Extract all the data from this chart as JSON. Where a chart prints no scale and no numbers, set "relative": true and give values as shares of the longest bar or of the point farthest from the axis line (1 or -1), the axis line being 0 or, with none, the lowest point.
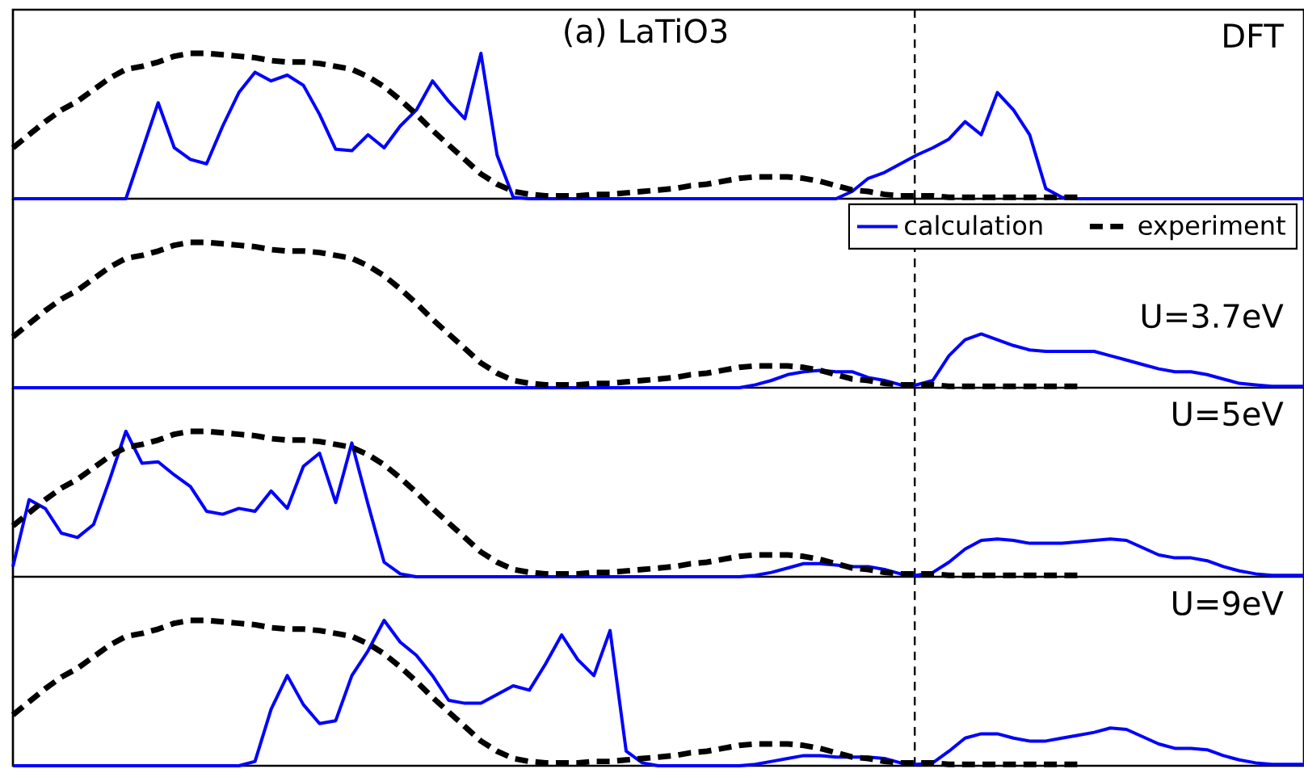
{
  "chart_data": [
    {
      "type": "line",
      "relative": true,
      "title": "(a) LaTiO3",
      "annotations": [
        "DFT"
      ],
      "legend": false,
      "categories": [
        null,
        null,
        null,
        null,
        null,
        null,
        null,
        null,
        null,
        null,
        null,
        null,
        null,
        null,
        null,
        null,
        null,
        null,
        null,
        null,
        null,
        null,
        null,
        null,
        null,
        null,
        null,
        null,
        null,
        null,
        null,
        null,
        null,
        null,
        null,
        null,
        null,
        null,
        null,
        null,
        null,
        null,
        null,
        null,
        null,
        null,
        null,
        null,
        null,
        null,
        null,
        null,
        null,
        null,
        null,
        null,
        null,
        null,
        null,
        null,
        null,
        null,
        null,
        null,
        null,
        null,
        null,
        null,
        null,
        null,
        null,
        null,
        null,
        null,
        null,
        null,
        null,
        null,
        null,
        null,
        null
      ],
      "series": [
        {
          "color": "#0000ff",
          "line_style": "solid",
          "values": [
            0,
            0,
            0,
            0,
            0,
            0,
            0,
            0,
            0.33,
            0.66,
            0.35,
            0.27,
            0.24,
            0.5,
            0.73,
            0.87,
            0.81,
            0.85,
            0.78,
            0.58,
            0.34,
            0.33,
            0.44,
            0.35,
            0.5,
            0.61,
            0.81,
            0.67,
            0.55,
            1.0,
            0.3,
            0.01,
            0,
            0,
            0,
            0,
            0,
            0,
            0,
            0,
            0,
            0,
            0,
            0,
            0,
            0,
            0,
            0,
            0,
            0,
            0,
            0,
            0.05,
            0.14,
            0.18,
            0.24,
            0.3,
            0.35,
            0.41,
            0.53,
            0.44,
            0.73,
            0.61,
            0.44,
            0.07,
            0.01,
            0,
            0,
            0,
            0,
            0,
            0,
            0,
            0,
            0,
            0,
            0,
            0,
            0,
            0,
            0
          ]
        },
        {
          "color": "#000000",
          "line_style": "dashed",
          "values": [
            0.35,
            0.44,
            0.53,
            0.61,
            0.67,
            0.75,
            0.83,
            0.89,
            0.91,
            0.94,
            0.98,
            1.0,
            1.0,
            0.99,
            0.98,
            0.97,
            0.95,
            0.94,
            0.94,
            0.93,
            0.91,
            0.89,
            0.84,
            0.77,
            0.68,
            0.58,
            0.47,
            0.37,
            0.27,
            0.17,
            0.1,
            0.05,
            0.03,
            0.02,
            0.02,
            0.02,
            0.03,
            0.03,
            0.04,
            0.05,
            0.06,
            0.07,
            0.09,
            0.1,
            0.12,
            0.14,
            0.15,
            0.15,
            0.15,
            0.14,
            0.12,
            0.09,
            0.06,
            0.05,
            0.03,
            0.02,
            0.02,
            0.02,
            0.01,
            0.01,
            0.01,
            0.01,
            0.01,
            0.01,
            0.01,
            0.01,
            0.01,
            null,
            null,
            null,
            null,
            null,
            null,
            null,
            null,
            null,
            null,
            null,
            null,
            null,
            null
          ]
        }
      ]
    },
    {
      "type": "line",
      "relative": true,
      "annotations": [
        "U=3.7eV"
      ],
      "legend": "top right",
      "categories": [
        null,
        null,
        null,
        null,
        null,
        null,
        null,
        null,
        null,
        null,
        null,
        null,
        null,
        null,
        null,
        null,
        null,
        null,
        null,
        null,
        null,
        null,
        null,
        null,
        null,
        null,
        null,
        null,
        null,
        null,
        null,
        null,
        null,
        null,
        null,
        null,
        null,
        null,
        null,
        null,
        null,
        null,
        null,
        null,
        null,
        null,
        null,
        null,
        null,
        null,
        null,
        null,
        null,
        null,
        null,
        null,
        null,
        null,
        null,
        null,
        null,
        null,
        null,
        null,
        null,
        null,
        null,
        null,
        null,
        null,
        null,
        null,
        null,
        null,
        null,
        null,
        null,
        null,
        null,
        null,
        null
      ],
      "series": [
        {
          "name": "calculation",
          "color": "#0000ff",
          "line_style": "solid",
          "values": [
            0,
            0,
            0,
            0,
            0,
            0,
            0,
            0,
            0,
            0,
            0,
            0,
            0,
            0,
            0,
            0,
            0,
            0,
            0,
            0,
            0,
            0,
            0,
            0,
            0,
            0,
            0,
            0,
            0,
            0,
            0,
            0,
            0,
            0,
            0,
            0,
            0,
            0,
            0,
            0,
            0,
            0,
            0,
            0,
            0,
            0,
            0.02,
            0.05,
            0.09,
            0.11,
            0.12,
            0.11,
            0.11,
            0.07,
            0.05,
            0.02,
            0.02,
            0.05,
            0.22,
            0.33,
            0.37,
            0.33,
            0.29,
            0.26,
            0.25,
            0.25,
            0.25,
            0.25,
            0.22,
            0.19,
            0.16,
            0.13,
            0.11,
            0.11,
            0.09,
            0.06,
            0.03,
            0.02,
            0.01,
            0.01,
            0.01
          ]
        },
        {
          "name": "experiment",
          "color": "#000000",
          "line_style": "dashed",
          "values": [
            0.35,
            0.44,
            0.53,
            0.61,
            0.67,
            0.75,
            0.83,
            0.89,
            0.91,
            0.94,
            0.98,
            1.0,
            1.0,
            0.99,
            0.98,
            0.97,
            0.95,
            0.94,
            0.94,
            0.93,
            0.91,
            0.89,
            0.84,
            0.77,
            0.68,
            0.58,
            0.47,
            0.37,
            0.27,
            0.17,
            0.1,
            0.05,
            0.03,
            0.02,
            0.02,
            0.02,
            0.03,
            0.03,
            0.04,
            0.05,
            0.06,
            0.07,
            0.09,
            0.1,
            0.12,
            0.14,
            0.15,
            0.15,
            0.15,
            0.14,
            0.12,
            0.09,
            0.06,
            0.05,
            0.03,
            0.02,
            0.02,
            0.02,
            0.01,
            0.01,
            0.01,
            0.01,
            0.01,
            0.01,
            0.01,
            0.01,
            0.01,
            null,
            null,
            null,
            null,
            null,
            null,
            null,
            null,
            null,
            null,
            null,
            null,
            null,
            null
          ]
        }
      ]
    },
    {
      "type": "line",
      "relative": true,
      "annotations": [
        "U=5eV"
      ],
      "legend": false,
      "categories": [
        null,
        null,
        null,
        null,
        null,
        null,
        null,
        null,
        null,
        null,
        null,
        null,
        null,
        null,
        null,
        null,
        null,
        null,
        null,
        null,
        null,
        null,
        null,
        null,
        null,
        null,
        null,
        null,
        null,
        null,
        null,
        null,
        null,
        null,
        null,
        null,
        null,
        null,
        null,
        null,
        null,
        null,
        null,
        null,
        null,
        null,
        null,
        null,
        null,
        null,
        null,
        null,
        null,
        null,
        null,
        null,
        null,
        null,
        null,
        null,
        null,
        null,
        null,
        null,
        null,
        null,
        null,
        null,
        null,
        null,
        null,
        null,
        null,
        null,
        null,
        null,
        null,
        null,
        null,
        null,
        null
      ],
      "series": [
        {
          "color": "#0000ff",
          "line_style": "solid",
          "values": [
            0.07,
            0.53,
            0.47,
            0.3,
            0.27,
            0.36,
            0.67,
            1.0,
            0.78,
            0.79,
            0.7,
            0.62,
            0.45,
            0.43,
            0.47,
            0.45,
            0.59,
            0.47,
            0.76,
            0.85,
            0.51,
            0.92,
            0.5,
            0.1,
            0.02,
            0,
            0,
            0,
            0,
            0,
            0,
            0,
            0,
            0,
            0,
            0,
            0,
            0,
            0,
            0,
            0,
            0,
            0,
            0,
            0,
            0,
            0.01,
            0.03,
            0.06,
            0.09,
            0.09,
            0.08,
            0.07,
            0.07,
            0.05,
            0.02,
            0.01,
            0.03,
            0.1,
            0.19,
            0.25,
            0.26,
            0.25,
            0.23,
            0.23,
            0.23,
            0.24,
            0.25,
            0.26,
            0.25,
            0.2,
            0.15,
            0.13,
            0.13,
            0.11,
            0.07,
            0.04,
            0.02,
            0.01,
            0.01,
            0.01
          ]
        },
        {
          "color": "#000000",
          "line_style": "dashed",
          "values": [
            0.35,
            0.44,
            0.53,
            0.61,
            0.67,
            0.75,
            0.83,
            0.89,
            0.91,
            0.94,
            0.98,
            1.0,
            1.0,
            0.99,
            0.98,
            0.97,
            0.95,
            0.94,
            0.94,
            0.93,
            0.91,
            0.89,
            0.84,
            0.77,
            0.68,
            0.58,
            0.47,
            0.37,
            0.27,
            0.17,
            0.1,
            0.05,
            0.03,
            0.02,
            0.02,
            0.02,
            0.03,
            0.03,
            0.04,
            0.05,
            0.06,
            0.07,
            0.09,
            0.1,
            0.12,
            0.14,
            0.15,
            0.15,
            0.15,
            0.14,
            0.12,
            0.09,
            0.06,
            0.05,
            0.03,
            0.02,
            0.02,
            0.02,
            0.01,
            0.01,
            0.01,
            0.01,
            0.01,
            0.01,
            0.01,
            0.01,
            0.01,
            null,
            null,
            null,
            null,
            null,
            null,
            null,
            null,
            null,
            null,
            null,
            null,
            null,
            null
          ]
        }
      ]
    },
    {
      "type": "line",
      "relative": true,
      "annotations": [
        "U=9eV"
      ],
      "legend": false,
      "categories": [
        null,
        null,
        null,
        null,
        null,
        null,
        null,
        null,
        null,
        null,
        null,
        null,
        null,
        null,
        null,
        null,
        null,
        null,
        null,
        null,
        null,
        null,
        null,
        null,
        null,
        null,
        null,
        null,
        null,
        null,
        null,
        null,
        null,
        null,
        null,
        null,
        null,
        null,
        null,
        null,
        null,
        null,
        null,
        null,
        null,
        null,
        null,
        null,
        null,
        null,
        null,
        null,
        null,
        null,
        null,
        null,
        null,
        null,
        null,
        null,
        null,
        null,
        null,
        null,
        null,
        null,
        null,
        null,
        null,
        null,
        null,
        null,
        null,
        null,
        null,
        null,
        null,
        null,
        null,
        null,
        null
      ],
      "series": [
        {
          "color": "#0000ff",
          "line_style": "solid",
          "values": [
            0,
            0,
            0,
            0,
            0,
            0,
            0,
            0,
            0,
            0,
            0,
            0,
            0,
            0,
            0,
            0.03,
            0.39,
            0.62,
            0.42,
            0.29,
            0.31,
            0.62,
            0.79,
            1.0,
            0.85,
            0.76,
            0.62,
            0.45,
            0.43,
            0.43,
            0.49,
            0.55,
            0.52,
            0.7,
            0.9,
            0.73,
            0.62,
            0.93,
            0.1,
            0.02,
            0,
            0,
            0,
            0,
            0,
            0,
            0.01,
            0.03,
            0.05,
            0.07,
            0.07,
            0.06,
            0.06,
            0.06,
            0.05,
            0.02,
            0.01,
            0.02,
            0.1,
            0.19,
            0.22,
            0.22,
            0.19,
            0.17,
            0.17,
            0.19,
            0.21,
            0.23,
            0.26,
            0.25,
            0.2,
            0.15,
            0.12,
            0.12,
            0.11,
            0.07,
            0.04,
            0.02,
            0.01,
            0.01,
            0.01
          ]
        },
        {
          "color": "#000000",
          "line_style": "dashed",
          "values": [
            0.35,
            0.44,
            0.53,
            0.61,
            0.67,
            0.75,
            0.83,
            0.89,
            0.91,
            0.94,
            0.98,
            1.0,
            1.0,
            0.99,
            0.98,
            0.97,
            0.95,
            0.94,
            0.94,
            0.93,
            0.91,
            0.89,
            0.84,
            0.77,
            0.68,
            0.58,
            0.47,
            0.37,
            0.27,
            0.17,
            0.1,
            0.05,
            0.03,
            0.02,
            0.02,
            0.02,
            0.03,
            0.03,
            0.04,
            0.05,
            0.06,
            0.07,
            0.09,
            0.1,
            0.12,
            0.14,
            0.15,
            0.15,
            0.15,
            0.14,
            0.12,
            0.09,
            0.06,
            0.05,
            0.03,
            0.02,
            0.02,
            0.02,
            0.01,
            0.01,
            0.01,
            0.01,
            0.01,
            0.01,
            0.01,
            0.01,
            0.01,
            null,
            null,
            null,
            null,
            null,
            null,
            null,
            null,
            null,
            null,
            null,
            null,
            null,
            null
          ]
        }
      ]
    }
  ]
}
